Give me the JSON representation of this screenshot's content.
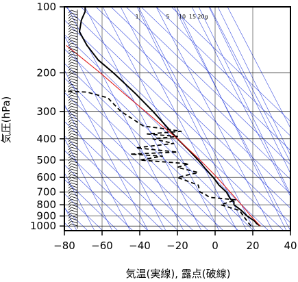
{
  "chart_data": {
    "type": "line",
    "title": "",
    "xlabel": "気温(実線), 露点(破線)",
    "ylabel": "気圧(hPa)",
    "x_ticks": [
      -80,
      -60,
      -40,
      -20,
      0,
      20,
      40
    ],
    "x_tick_labels": [
      "−80",
      "−60",
      "−40",
      "−20",
      "0",
      "20",
      "40"
    ],
    "xlim": [
      -80,
      40
    ],
    "y_ticks": [
      100,
      200,
      300,
      400,
      500,
      600,
      700,
      800,
      900,
      1000
    ],
    "y_tick_labels": [
      "100",
      "200",
      "300",
      "400",
      "500",
      "600",
      "700",
      "800",
      "900",
      "1000"
    ],
    "ylim": [
      1050,
      100
    ],
    "y_scale": "log",
    "grid": true,
    "mixing_ratio_labels": [
      "1",
      "5",
      "10",
      "15",
      "20g"
    ],
    "colors": {
      "temperature": "#000000",
      "dewpoint": "#000000",
      "parcel": "#e02020",
      "guides": "#3a4ee0",
      "grid": "#000000"
    },
    "series": [
      {
        "style": "solid",
        "points": [
          [
            1000,
            24
          ],
          [
            975,
            22
          ],
          [
            950,
            21
          ],
          [
            925,
            19
          ],
          [
            900,
            17
          ],
          [
            850,
            14
          ],
          [
            800,
            10
          ],
          [
            775,
            10
          ],
          [
            750,
            8
          ],
          [
            700,
            6
          ],
          [
            650,
            2
          ],
          [
            600,
            -1
          ],
          [
            550,
            -5
          ],
          [
            500,
            -9
          ],
          [
            450,
            -14
          ],
          [
            400,
            -20
          ],
          [
            350,
            -26
          ],
          [
            300,
            -33
          ],
          [
            250,
            -42
          ],
          [
            200,
            -54
          ],
          [
            175,
            -62
          ],
          [
            150,
            -68
          ],
          [
            130,
            -72
          ],
          [
            115,
            -71
          ],
          [
            105,
            -69
          ],
          [
            100,
            -69
          ]
        ]
      },
      {
        "style": "dashed",
        "points": [
          [
            1000,
            19
          ],
          [
            950,
            17
          ],
          [
            900,
            15
          ],
          [
            850,
            13
          ],
          [
            800,
            3
          ],
          [
            760,
            11
          ],
          [
            740,
            -3
          ],
          [
            720,
            -5
          ],
          [
            700,
            -8
          ],
          [
            650,
            -9
          ],
          [
            600,
            -20
          ],
          [
            570,
            -9
          ],
          [
            540,
            -20
          ],
          [
            520,
            -14
          ],
          [
            500,
            -40
          ],
          [
            480,
            -28
          ],
          [
            470,
            -45
          ],
          [
            460,
            -20
          ],
          [
            440,
            -42
          ],
          [
            420,
            -22
          ],
          [
            400,
            -33
          ],
          [
            390,
            -20
          ],
          [
            380,
            -36
          ],
          [
            370,
            -18
          ],
          [
            360,
            -27
          ],
          [
            350,
            -38
          ],
          [
            300,
            -50
          ],
          [
            260,
            -57
          ],
          [
            245,
            -68
          ],
          [
            240,
            -90
          ]
        ]
      },
      {
        "style": "solid-red",
        "points": [
          [
            1000,
            24
          ],
          [
            900,
            19
          ],
          [
            800,
            14
          ],
          [
            700,
            8
          ],
          [
            600,
            1
          ],
          [
            500,
            -8
          ],
          [
            400,
            -20
          ],
          [
            300,
            -37
          ],
          [
            250,
            -48
          ],
          [
            200,
            -61
          ],
          [
            150,
            -79
          ]
        ]
      }
    ]
  }
}
